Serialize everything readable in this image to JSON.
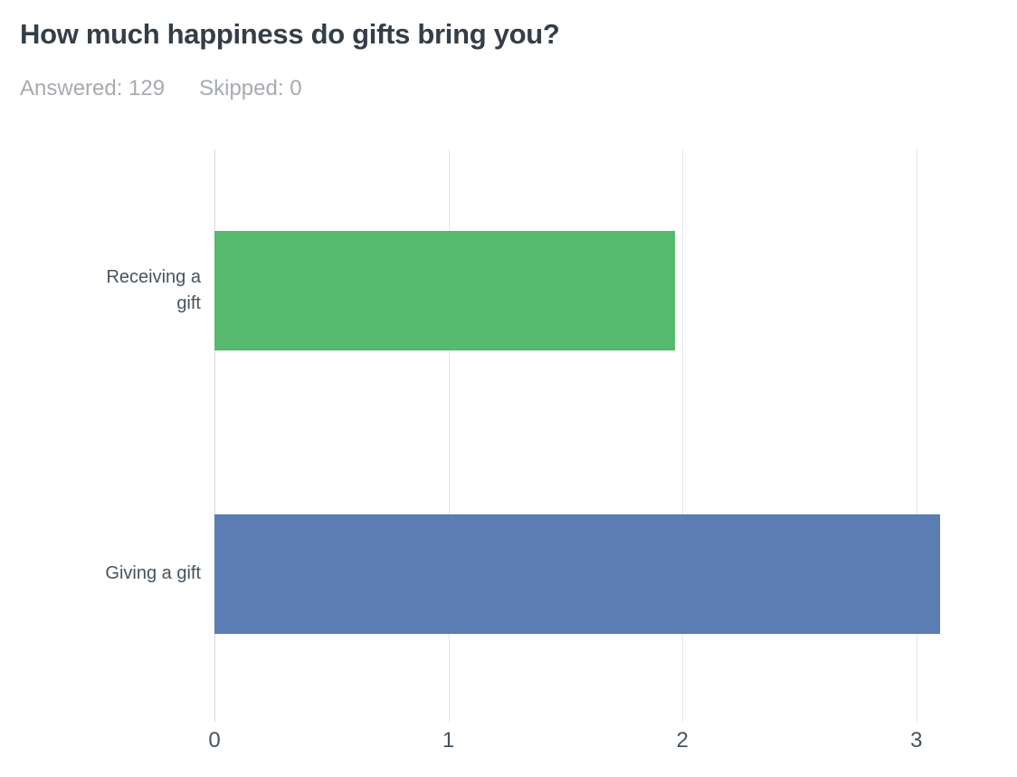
{
  "header": {
    "title": "How much happiness do gifts bring you?",
    "answered_label": "Answered:",
    "answered_value": "129",
    "skipped_label": "Skipped:",
    "skipped_value": "0"
  },
  "chart_data": {
    "type": "bar",
    "orientation": "horizontal",
    "title": "How much happiness do gifts bring you?",
    "categories": [
      "Receiving a gift",
      "Giving a gift"
    ],
    "values": [
      1.97,
      3.1
    ],
    "colors": [
      "#55b96e",
      "#5b7db3"
    ],
    "xlabel": "",
    "ylabel": "",
    "xlim": [
      0,
      3.43
    ],
    "xticks": [
      0,
      1,
      2,
      3
    ],
    "grid": true,
    "legend": "none",
    "gridline_color": "#e6e6e6"
  }
}
